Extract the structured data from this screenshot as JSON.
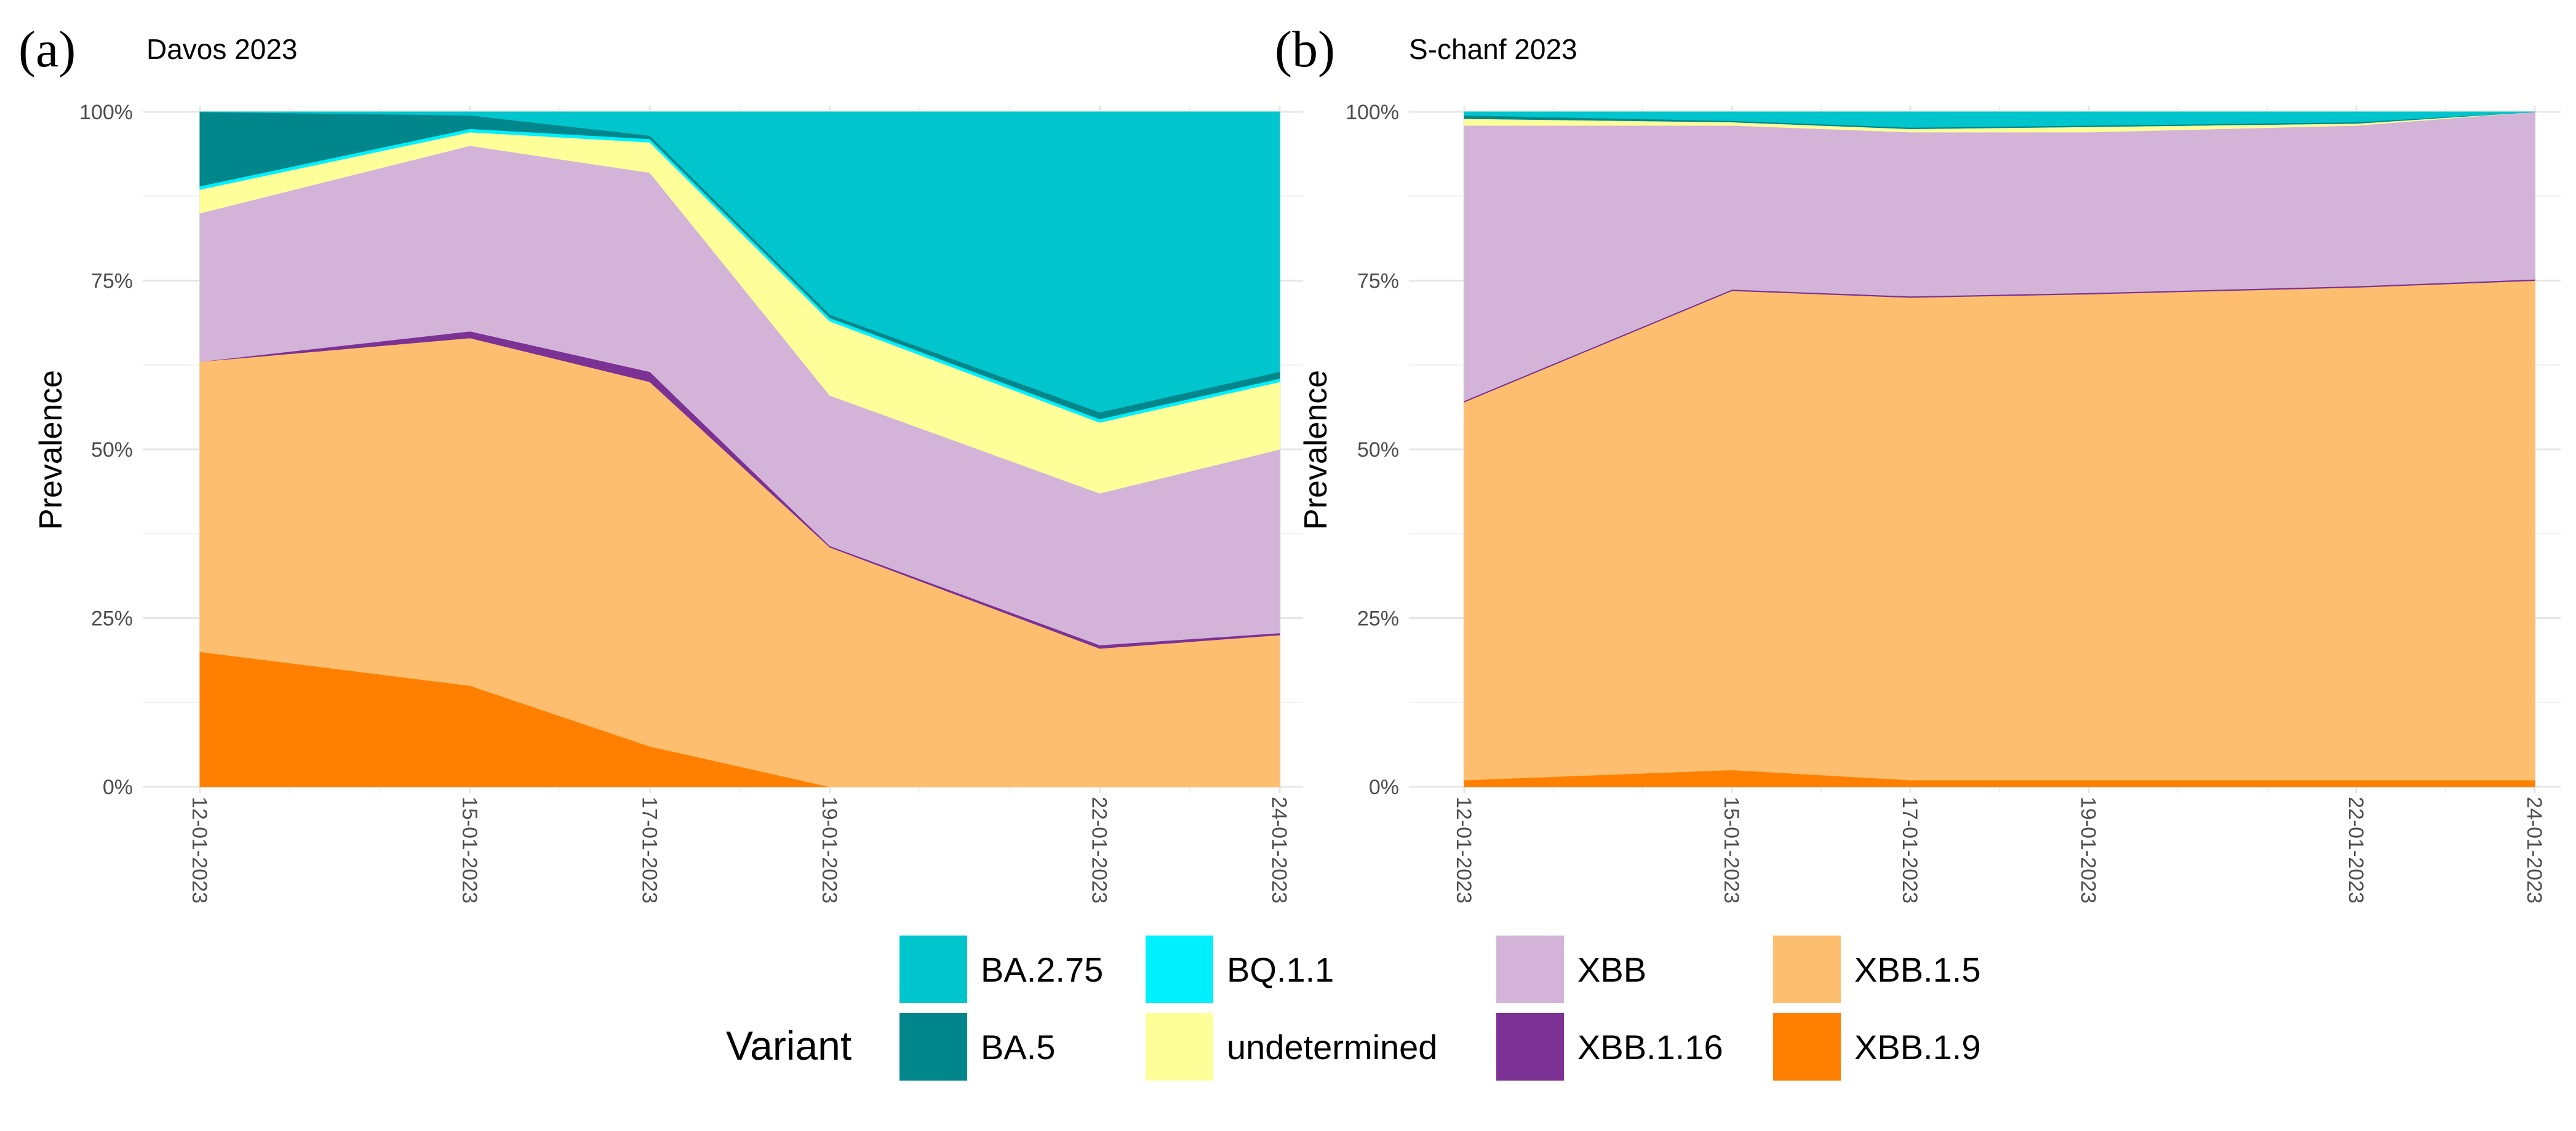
{
  "chart_data": [
    {
      "type": "area",
      "panel_letter": "(a)",
      "title": "Davos 2023",
      "xlabel": "",
      "ylabel": "Prevalence",
      "x": [
        0,
        3,
        5,
        7,
        10,
        12
      ],
      "x_tick_labels": [
        "12-01-2023",
        "15-01-2023",
        "17-01-2023",
        "19-01-2023",
        "22-01-2023",
        "24-01-2023"
      ],
      "y_tick_labels": [
        "0%",
        "25%",
        "50%",
        "75%",
        "100%"
      ],
      "ylim": [
        0,
        1
      ],
      "stacked": true,
      "grid": true,
      "series": [
        {
          "name": "XBB.1.9",
          "color": "#FF8000",
          "values": [
            0.2,
            0.15,
            0.06,
            0.0,
            0.0,
            0.0
          ]
        },
        {
          "name": "XBB.1.5",
          "color": "#FDBF6F",
          "values": [
            0.43,
            0.515,
            0.54,
            0.355,
            0.205,
            0.225
          ]
        },
        {
          "name": "XBB.1.16",
          "color": "#7B3294",
          "values": [
            0.0,
            0.01,
            0.015,
            0.002,
            0.005,
            0.003
          ]
        },
        {
          "name": "XBB",
          "color": "#D4B3D9",
          "values": [
            0.22,
            0.275,
            0.295,
            0.223,
            0.225,
            0.272
          ]
        },
        {
          "name": "undetermined",
          "color": "#FFFF99",
          "values": [
            0.035,
            0.02,
            0.045,
            0.11,
            0.105,
            0.1
          ]
        },
        {
          "name": "BQ.1.1",
          "color": "#00F0FF",
          "values": [
            0.005,
            0.005,
            0.005,
            0.005,
            0.005,
            0.005
          ]
        },
        {
          "name": "BA.5",
          "color": "#00868B",
          "values": [
            0.11,
            0.02,
            0.005,
            0.005,
            0.01,
            0.01
          ]
        },
        {
          "name": "BA.2.75",
          "color": "#00C5CD",
          "values": [
            0.0,
            0.005,
            0.035,
            0.3,
            0.445,
            0.385
          ]
        }
      ]
    },
    {
      "type": "area",
      "panel_letter": "(b)",
      "title": "S-chanf 2023",
      "xlabel": "",
      "ylabel": "Prevalence",
      "x": [
        0,
        3,
        5,
        7,
        10,
        12
      ],
      "x_tick_labels": [
        "12-01-2023",
        "15-01-2023",
        "17-01-2023",
        "19-01-2023",
        "22-01-2023",
        "24-01-2023"
      ],
      "y_tick_labels": [
        "0%",
        "25%",
        "50%",
        "75%",
        "100%"
      ],
      "ylim": [
        0,
        1
      ],
      "stacked": true,
      "grid": true,
      "series": [
        {
          "name": "XBB.1.9",
          "color": "#FF8000",
          "values": [
            0.01,
            0.025,
            0.01,
            0.01,
            0.01,
            0.01
          ]
        },
        {
          "name": "XBB.1.5",
          "color": "#FDBF6F",
          "values": [
            0.56,
            0.71,
            0.715,
            0.72,
            0.73,
            0.74
          ]
        },
        {
          "name": "XBB.1.16",
          "color": "#7B3294",
          "values": [
            0.002,
            0.002,
            0.002,
            0.002,
            0.002,
            0.002
          ]
        },
        {
          "name": "XBB",
          "color": "#D4B3D9",
          "values": [
            0.408,
            0.243,
            0.243,
            0.238,
            0.238,
            0.248
          ]
        },
        {
          "name": "undetermined",
          "color": "#FFFF99",
          "values": [
            0.01,
            0.005,
            0.005,
            0.008,
            0.003,
            0.0
          ]
        },
        {
          "name": "BQ.1.1",
          "color": "#00F0FF",
          "values": [
            0.0,
            0.0,
            0.0,
            0.0,
            0.0,
            0.0
          ]
        },
        {
          "name": "BA.5",
          "color": "#00868B",
          "values": [
            0.005,
            0.002,
            0.002,
            0.002,
            0.002,
            0.0
          ]
        },
        {
          "name": "BA.2.75",
          "color": "#00C5CD",
          "values": [
            0.005,
            0.013,
            0.023,
            0.02,
            0.015,
            0.0
          ]
        }
      ]
    }
  ],
  "legend": {
    "title": "Variant",
    "position": "bottom",
    "items": [
      {
        "name": "BA.2.75",
        "color": "#00C5CD"
      },
      {
        "name": "BA.5",
        "color": "#00868B"
      },
      {
        "name": "BQ.1.1",
        "color": "#00F0FF"
      },
      {
        "name": "undetermined",
        "color": "#FFFF99"
      },
      {
        "name": "XBB",
        "color": "#D4B3D9"
      },
      {
        "name": "XBB.1.16",
        "color": "#7B3294"
      },
      {
        "name": "XBB.1.5",
        "color": "#FDBF6F"
      },
      {
        "name": "XBB.1.9",
        "color": "#FF8000"
      }
    ]
  }
}
